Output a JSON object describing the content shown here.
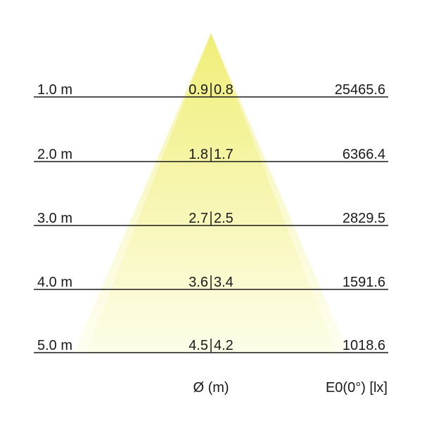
{
  "rows": [
    {
      "distance": "1.0 m",
      "diameter_left": "0.9",
      "diameter_right": "0.8",
      "illuminance": "25465.6"
    },
    {
      "distance": "2.0 m",
      "diameter_left": "1.8",
      "diameter_right": "1.7",
      "illuminance": "6366.4"
    },
    {
      "distance": "3.0 m",
      "diameter_left": "2.7",
      "diameter_right": "2.5",
      "illuminance": "2829.5"
    },
    {
      "distance": "4.0 m",
      "diameter_left": "3.6",
      "diameter_right": "3.4",
      "illuminance": "1591.6"
    },
    {
      "distance": "5.0 m",
      "diameter_left": "4.5",
      "diameter_right": "4.2",
      "illuminance": "1018.6"
    }
  ],
  "footer": {
    "diameter_label": "Ø (m)",
    "illuminance_label": "E0(0°) [lx]"
  },
  "colors": {
    "cone_top": "#eeec66",
    "cone_bottom": "#fdfde6",
    "line": "#1a1a1a"
  }
}
